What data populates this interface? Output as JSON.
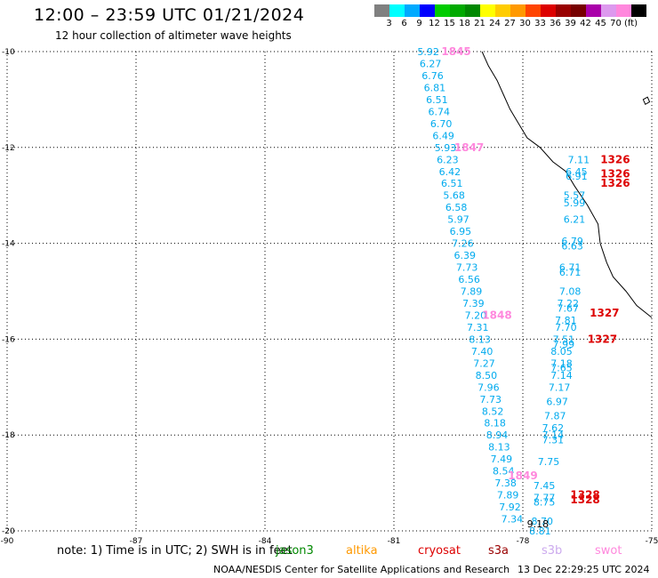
{
  "header": {
    "title": "12:00 – 23:59 UTC 01/21/2024",
    "subtitle": "12 hour collection of altimeter wave heights"
  },
  "colorbar": {
    "colors": [
      "#808080",
      "#00ffff",
      "#00aaff",
      "#0000ff",
      "#00cc00",
      "#00aa00",
      "#008800",
      "#ffff00",
      "#ffcc00",
      "#ff9900",
      "#ff4400",
      "#dd0000",
      "#990000",
      "#770000",
      "#aa00aa",
      "#dd99ee",
      "#ff88dd",
      "#000000"
    ],
    "ticks": [
      "3",
      "6",
      "9",
      "12",
      "15",
      "18",
      "21",
      "24",
      "27",
      "30",
      "33",
      "36",
      "39",
      "42",
      "45",
      "70",
      "(ft)"
    ]
  },
  "chart_data": {
    "type": "scatter",
    "xlim": [
      -90,
      -75
    ],
    "ylim": [
      -20,
      -10
    ],
    "x_ticks": [
      "-90",
      "-87",
      "-84",
      "-81",
      "-78",
      "-75"
    ],
    "y_ticks": [
      "-10",
      "-12",
      "-14",
      "-16",
      "-18",
      "-20"
    ],
    "grid": true,
    "track_a": {
      "color": "#00aaee",
      "points": [
        {
          "lon": -80.2,
          "lat": -10.0,
          "v": "5.92"
        },
        {
          "lon": -80.15,
          "lat": -10.25,
          "v": "6.27"
        },
        {
          "lon": -80.1,
          "lat": -10.5,
          "v": "6.76"
        },
        {
          "lon": -80.05,
          "lat": -10.75,
          "v": "6.81"
        },
        {
          "lon": -80.0,
          "lat": -11.0,
          "v": "6.51"
        },
        {
          "lon": -79.95,
          "lat": -11.25,
          "v": "6.74"
        },
        {
          "lon": -79.9,
          "lat": -11.5,
          "v": "6.70"
        },
        {
          "lon": -79.85,
          "lat": -11.75,
          "v": "6.49"
        },
        {
          "lon": -79.8,
          "lat": -12.0,
          "v": "5.93"
        },
        {
          "lon": -79.75,
          "lat": -12.25,
          "v": "6.23"
        },
        {
          "lon": -79.7,
          "lat": -12.5,
          "v": "6.42"
        },
        {
          "lon": -79.65,
          "lat": -12.75,
          "v": "6.51"
        },
        {
          "lon": -79.6,
          "lat": -13.0,
          "v": "5.68"
        },
        {
          "lon": -79.55,
          "lat": -13.25,
          "v": "6.58"
        },
        {
          "lon": -79.5,
          "lat": -13.5,
          "v": "5.97"
        },
        {
          "lon": -79.45,
          "lat": -13.75,
          "v": "6.95"
        },
        {
          "lon": -79.4,
          "lat": -14.0,
          "v": "7.26"
        },
        {
          "lon": -79.35,
          "lat": -14.25,
          "v": "6.39"
        },
        {
          "lon": -79.3,
          "lat": -14.5,
          "v": "7.73"
        },
        {
          "lon": -79.25,
          "lat": -14.75,
          "v": "6.56"
        },
        {
          "lon": -79.2,
          "lat": -15.0,
          "v": "7.89"
        },
        {
          "lon": -79.15,
          "lat": -15.25,
          "v": "7.39"
        },
        {
          "lon": -79.1,
          "lat": -15.5,
          "v": "7.20"
        },
        {
          "lon": -79.05,
          "lat": -15.75,
          "v": "7.31"
        },
        {
          "lon": -79.0,
          "lat": -16.0,
          "v": "8.13"
        },
        {
          "lon": -78.95,
          "lat": -16.25,
          "v": "7.40"
        },
        {
          "lon": -78.9,
          "lat": -16.5,
          "v": "7.27"
        },
        {
          "lon": -78.85,
          "lat": -16.75,
          "v": "8.50"
        },
        {
          "lon": -78.8,
          "lat": -17.0,
          "v": "7.96"
        },
        {
          "lon": -78.75,
          "lat": -17.25,
          "v": "7.73"
        },
        {
          "lon": -78.7,
          "lat": -17.5,
          "v": "8.52"
        },
        {
          "lon": -78.65,
          "lat": -17.75,
          "v": "8.18"
        },
        {
          "lon": -78.6,
          "lat": -18.0,
          "v": "8.94"
        },
        {
          "lon": -78.55,
          "lat": -18.25,
          "v": "8.13"
        },
        {
          "lon": -78.5,
          "lat": -18.5,
          "v": "7.49"
        },
        {
          "lon": -78.45,
          "lat": -18.75,
          "v": "8.54"
        },
        {
          "lon": -78.4,
          "lat": -19.0,
          "v": "7.38"
        },
        {
          "lon": -78.35,
          "lat": -19.25,
          "v": "7.89"
        },
        {
          "lon": -78.3,
          "lat": -19.5,
          "v": "7.92"
        },
        {
          "lon": -78.25,
          "lat": -19.75,
          "v": "7.34"
        }
      ]
    },
    "track_b": {
      "color": "#00aaee",
      "points": [
        {
          "lon": -76.7,
          "lat": -12.25,
          "v": "7.11"
        },
        {
          "lon": -76.75,
          "lat": -12.5,
          "v": "6.45"
        },
        {
          "lon": -76.75,
          "lat": -12.6,
          "v": "6.91"
        },
        {
          "lon": -76.8,
          "lat": -13.0,
          "v": "5.57"
        },
        {
          "lon": -76.8,
          "lat": -13.15,
          "v": "5.99"
        },
        {
          "lon": -76.8,
          "lat": -13.5,
          "v": "6.21"
        },
        {
          "lon": -76.85,
          "lat": -13.95,
          "v": "6.79"
        },
        {
          "lon": -76.85,
          "lat": -14.05,
          "v": "6.63"
        },
        {
          "lon": -76.9,
          "lat": -14.5,
          "v": "6.71"
        },
        {
          "lon": -76.9,
          "lat": -14.6,
          "v": "6.71"
        },
        {
          "lon": -76.9,
          "lat": -15.0,
          "v": "7.08"
        },
        {
          "lon": -76.95,
          "lat": -15.25,
          "v": "7.22"
        },
        {
          "lon": -76.95,
          "lat": -15.35,
          "v": "7.67"
        },
        {
          "lon": -77.0,
          "lat": -15.6,
          "v": "7.81"
        },
        {
          "lon": -77.0,
          "lat": -15.75,
          "v": "7.70"
        },
        {
          "lon": -77.05,
          "lat": -16.0,
          "v": "7.51"
        },
        {
          "lon": -77.05,
          "lat": -16.1,
          "v": "7.99"
        },
        {
          "lon": -77.1,
          "lat": -16.25,
          "v": "8.05"
        },
        {
          "lon": -77.1,
          "lat": -16.5,
          "v": "7.18"
        },
        {
          "lon": -77.1,
          "lat": -16.6,
          "v": "7.65"
        },
        {
          "lon": -77.1,
          "lat": -16.75,
          "v": "7.14"
        },
        {
          "lon": -77.15,
          "lat": -17.0,
          "v": "7.17"
        },
        {
          "lon": -77.2,
          "lat": -17.3,
          "v": "6.97"
        },
        {
          "lon": -77.25,
          "lat": -17.6,
          "v": "7.87"
        },
        {
          "lon": -77.3,
          "lat": -17.85,
          "v": "7.62"
        },
        {
          "lon": -77.3,
          "lat": -18.0,
          "v": "7.14"
        },
        {
          "lon": -77.3,
          "lat": -18.1,
          "v": "7.31"
        },
        {
          "lon": -77.4,
          "lat": -18.55,
          "v": "7.75"
        },
        {
          "lon": -77.5,
          "lat": -19.05,
          "v": "7.45"
        },
        {
          "lon": -77.5,
          "lat": -19.3,
          "v": "7.77"
        },
        {
          "lon": -77.5,
          "lat": -19.4,
          "v": "8.75"
        },
        {
          "lon": -77.55,
          "lat": -19.8,
          "v": "8.70"
        },
        {
          "lon": -77.6,
          "lat": -20.0,
          "v": "8.81"
        }
      ]
    },
    "black_values": [
      {
        "lon": -77.65,
        "lat": -19.85,
        "v": "9.18"
      }
    ],
    "time_labels": [
      {
        "lon": -79.55,
        "lat": -10.0,
        "v": "1845",
        "color": "#ff88dd"
      },
      {
        "lon": -79.25,
        "lat": -12.0,
        "v": "1847",
        "color": "#ff88dd"
      },
      {
        "lon": -78.6,
        "lat": -15.5,
        "v": "1848",
        "color": "#ff88dd"
      },
      {
        "lon": -78.0,
        "lat": -18.85,
        "v": "1849",
        "color": "#ff88dd"
      },
      {
        "lon": -75.85,
        "lat": -12.25,
        "v": "1326",
        "color": "#dd0000"
      },
      {
        "lon": -75.85,
        "lat": -12.55,
        "v": "1326",
        "color": "#dd0000"
      },
      {
        "lon": -75.85,
        "lat": -12.75,
        "v": "1326",
        "color": "#dd0000"
      },
      {
        "lon": -76.1,
        "lat": -15.45,
        "v": "1327",
        "color": "#dd0000"
      },
      {
        "lon": -76.15,
        "lat": -16.0,
        "v": "1327",
        "color": "#dd0000"
      },
      {
        "lon": -76.55,
        "lat": -19.25,
        "v": "1328",
        "color": "#dd0000"
      },
      {
        "lon": -76.55,
        "lat": -19.35,
        "v": "1328",
        "color": "#dd0000"
      }
    ],
    "coastline": [
      [
        -78.95,
        -10.0
      ],
      [
        -78.8,
        -10.3
      ],
      [
        -78.6,
        -10.6
      ],
      [
        -78.45,
        -10.9
      ],
      [
        -78.3,
        -11.2
      ],
      [
        -78.1,
        -11.5
      ],
      [
        -77.9,
        -11.8
      ],
      [
        -77.6,
        -12.0
      ],
      [
        -77.3,
        -12.3
      ],
      [
        -77.0,
        -12.5
      ],
      [
        -76.8,
        -12.8
      ],
      [
        -76.5,
        -13.2
      ],
      [
        -76.25,
        -13.6
      ],
      [
        -76.2,
        -14.0
      ],
      [
        -76.05,
        -14.4
      ],
      [
        -75.9,
        -14.7
      ],
      [
        -75.6,
        -15.0
      ],
      [
        -75.35,
        -15.3
      ],
      [
        -75.0,
        -15.55
      ]
    ],
    "island": [
      [
        -75.2,
        -11.0
      ],
      [
        -75.1,
        -10.95
      ],
      [
        -75.05,
        -11.05
      ],
      [
        -75.15,
        -11.1
      ],
      [
        -75.2,
        -11.0
      ]
    ]
  },
  "footer": {
    "note": "note:  1) Time is in UTC; 2) SWH is in feet",
    "satellites": [
      {
        "name": "jason3",
        "color": "#008800"
      },
      {
        "name": "altika",
        "color": "#ff9900"
      },
      {
        "name": "cryosat",
        "color": "#dd0000"
      },
      {
        "name": "s3a",
        "color": "#990000"
      },
      {
        "name": "s3b",
        "color": "#ccaaee"
      },
      {
        "name": "swot",
        "color": "#ff88dd"
      }
    ],
    "credit": "NOAA/NESDIS Center for Satellite Applications and Research",
    "timestamp": "13 Dec 22:29:25 UTC 2024"
  }
}
